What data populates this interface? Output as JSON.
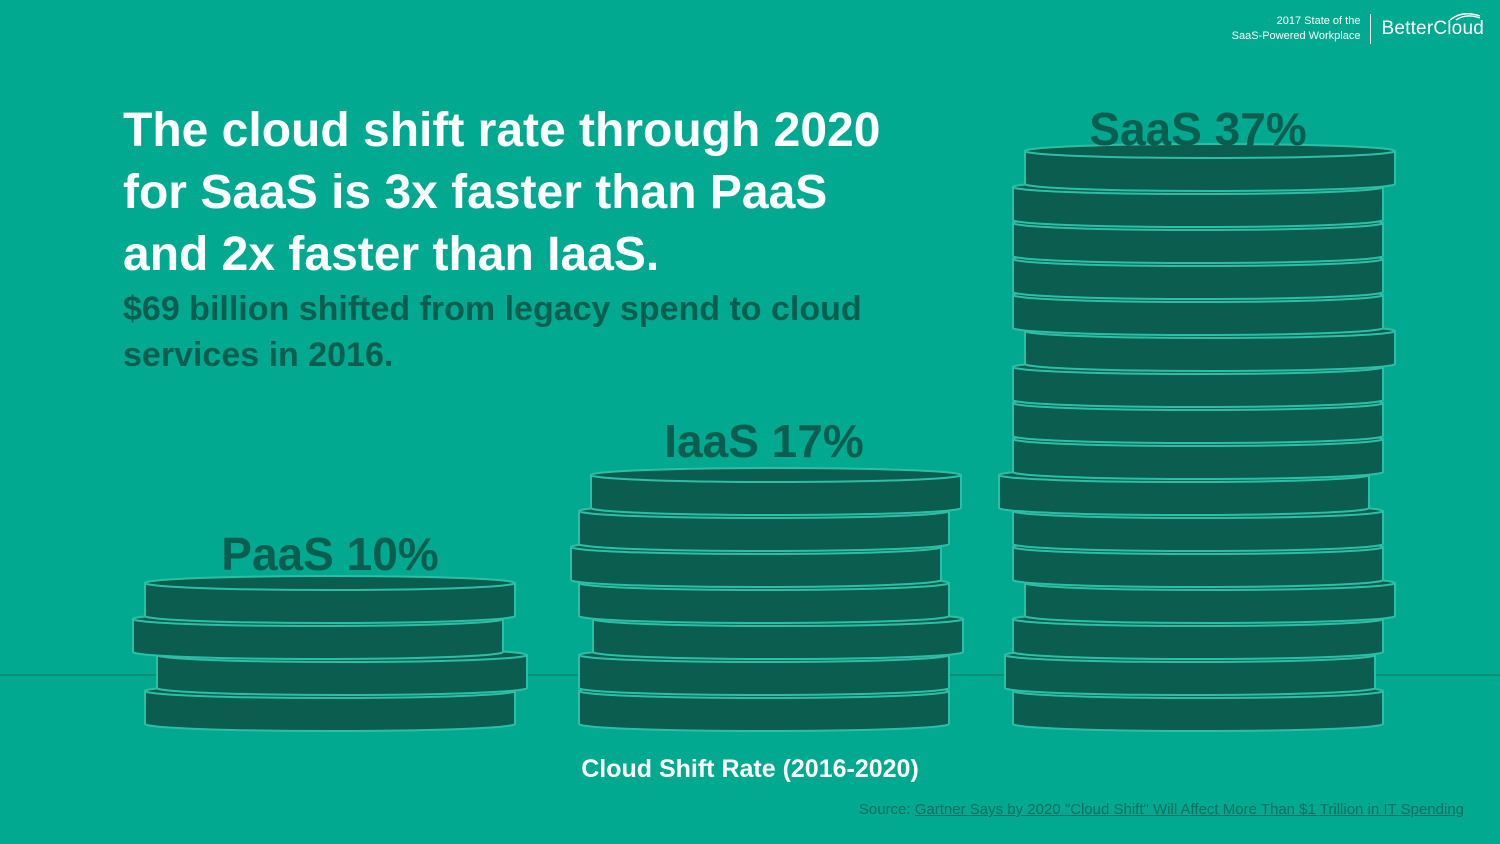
{
  "brand": {
    "report_line1": "2017 State of the",
    "report_line2": "SaaS-Powered Workplace",
    "logo_text": "BetterCloud"
  },
  "headline": "The cloud shift rate through 2020 for SaaS is 3x faster than PaaS and 2x faster than IaaS.",
  "subhead": "$69 billion shifted from legacy spend to cloud services in 2016.",
  "colors": {
    "background": "#00a98f",
    "coin": "#0b5e4f",
    "coin_edge": "#2bbfa6",
    "baseline": "#0a8e78"
  },
  "chart_data": {
    "type": "bar",
    "style": "stacked coin pictograph",
    "title": "Cloud Shift Rate (2016-2020)",
    "categories": [
      "PaaS",
      "IaaS",
      "SaaS"
    ],
    "values": [
      10,
      17,
      37
    ],
    "unit": "%",
    "data_labels": [
      "PaaS 10%",
      "IaaS 17%",
      "SaaS 37%"
    ]
  },
  "source": {
    "prefix": "Source:",
    "link_text": "Gartner Says by 2020 \"Cloud Shift\" Will Affect More Than $1 Trillion in IT Spending"
  }
}
